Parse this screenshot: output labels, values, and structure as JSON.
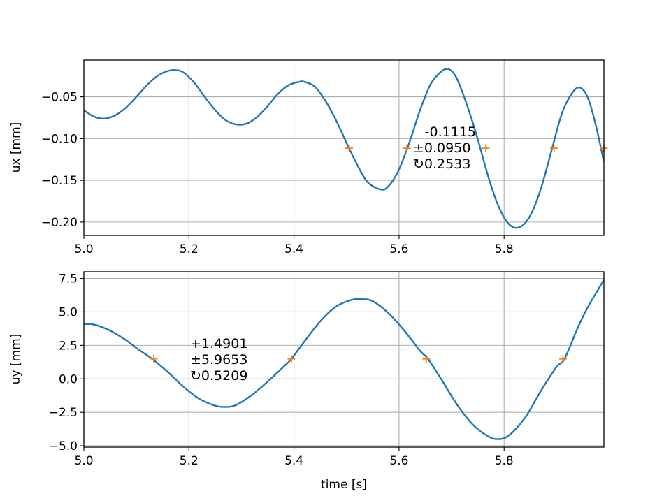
{
  "chart_data": [
    {
      "type": "line",
      "ylabel": "ux [mm]",
      "xlabel": "",
      "xlim": [
        5.0,
        5.99
      ],
      "ylim": [
        -0.216,
        -0.006
      ],
      "grid": true,
      "xticks": [
        "5.0",
        "5.2",
        "5.4",
        "5.6",
        "5.8"
      ],
      "yticks": [
        "−0.05",
        "−0.10",
        "−0.15",
        "−0.20"
      ],
      "colors": {
        "line": "#1f77b4",
        "marker": "#ff7f0e"
      },
      "series": [
        {
          "x": [
            5.0,
            5.02,
            5.04,
            5.06,
            5.08,
            5.1,
            5.12,
            5.14,
            5.16,
            5.175,
            5.19,
            5.21,
            5.23,
            5.25,
            5.27,
            5.29,
            5.31,
            5.33,
            5.35,
            5.37,
            5.39,
            5.41,
            5.42,
            5.44,
            5.46,
            5.48,
            5.5,
            5.52,
            5.54,
            5.565,
            5.58,
            5.6,
            5.62,
            5.64,
            5.66,
            5.68,
            5.695,
            5.71,
            5.73,
            5.75,
            5.77,
            5.79,
            5.81,
            5.83,
            5.85,
            5.87,
            5.89,
            5.91,
            5.93,
            5.945,
            5.96,
            5.975,
            5.99
          ],
          "values": [
            -0.066,
            -0.074,
            -0.076,
            -0.072,
            -0.063,
            -0.05,
            -0.036,
            -0.025,
            -0.019,
            -0.018,
            -0.021,
            -0.033,
            -0.05,
            -0.066,
            -0.078,
            -0.083,
            -0.082,
            -0.074,
            -0.061,
            -0.046,
            -0.036,
            -0.032,
            -0.032,
            -0.038,
            -0.055,
            -0.078,
            -0.105,
            -0.131,
            -0.152,
            -0.161,
            -0.157,
            -0.137,
            -0.104,
            -0.066,
            -0.035,
            -0.02,
            -0.017,
            -0.028,
            -0.061,
            -0.101,
            -0.146,
            -0.182,
            -0.203,
            -0.206,
            -0.192,
            -0.16,
            -0.115,
            -0.07,
            -0.045,
            -0.039,
            -0.052,
            -0.085,
            -0.128
          ]
        }
      ],
      "markers": {
        "y": -0.1115,
        "x": [
          5.505,
          5.615,
          5.765,
          5.895,
          5.99
        ]
      },
      "annotation": [
        "-0.1115",
        "±0.0950",
        "↻0.2533"
      ]
    },
    {
      "type": "line",
      "ylabel": "uy [mm]",
      "xlabel": "time [s]",
      "xlim": [
        5.0,
        5.99
      ],
      "ylim": [
        -5.1,
        8.0
      ],
      "grid": true,
      "xticks": [
        "5.0",
        "5.2",
        "5.4",
        "5.6",
        "5.8"
      ],
      "yticks": [
        "7.5",
        "5.0",
        "2.5",
        "0.0",
        "−2.5",
        "−5.0"
      ],
      "colors": {
        "line": "#1f77b4",
        "marker": "#ff7f0e"
      },
      "series": [
        {
          "x": [
            5.0,
            5.02,
            5.05,
            5.08,
            5.1,
            5.13,
            5.16,
            5.19,
            5.22,
            5.25,
            5.27,
            5.29,
            5.32,
            5.35,
            5.38,
            5.395,
            5.42,
            5.45,
            5.48,
            5.51,
            5.53,
            5.55,
            5.58,
            5.61,
            5.64,
            5.655,
            5.68,
            5.71,
            5.74,
            5.77,
            5.79,
            5.81,
            5.84,
            5.87,
            5.9,
            5.915,
            5.94,
            5.96,
            5.99
          ],
          "values": [
            4.1,
            4.05,
            3.6,
            2.9,
            2.3,
            1.49,
            0.5,
            -0.6,
            -1.5,
            -2.0,
            -2.1,
            -1.95,
            -1.2,
            -0.2,
            0.9,
            1.49,
            2.8,
            4.3,
            5.4,
            5.9,
            5.95,
            5.8,
            4.9,
            3.6,
            2.1,
            1.49,
            0.0,
            -1.9,
            -3.4,
            -4.3,
            -4.5,
            -4.2,
            -2.9,
            -0.9,
            0.9,
            1.49,
            3.8,
            5.4,
            7.4
          ]
        }
      ],
      "markers": {
        "y": 1.4901,
        "x": [
          5.133,
          5.395,
          5.652,
          5.912
        ]
      },
      "annotation": [
        "+1.4901",
        "±5.9653",
        "↻0.5209"
      ]
    }
  ]
}
